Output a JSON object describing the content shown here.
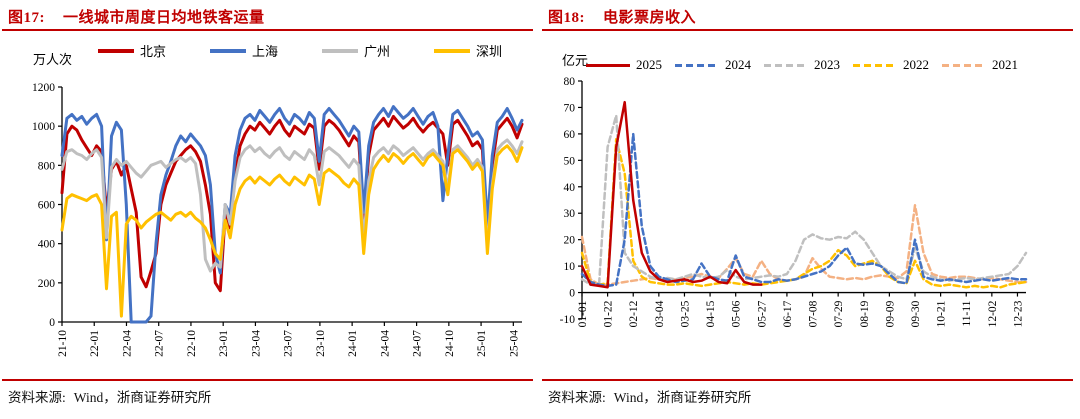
{
  "figures": [
    {
      "number": "图17:",
      "title": "一线城市周度日均地铁客运量",
      "source_label": "资料来源:",
      "source_text": "Wind，浙商证券研究所"
    },
    {
      "number": "图18:",
      "title": "电影票房收入",
      "source_label": "资料来源:",
      "source_text": "Wind，浙商证券研究所"
    }
  ],
  "colors": {
    "accent": "#C00000",
    "axis": "#000000"
  },
  "chart_data": [
    {
      "type": "line",
      "title": "一线城市周度日均地铁客运量",
      "ylabel": "万人次",
      "ylim": [
        0,
        1200
      ],
      "yticks": [
        0,
        200,
        400,
        600,
        800,
        1000,
        1200
      ],
      "grid": false,
      "legend_position": "top",
      "x_description": "weekly average daily metro ridership, one point per 2 weeks from 2021-10 to 2025-05",
      "x_tick_labels": [
        "21-10",
        "22-01",
        "22-04",
        "22-07",
        "22-10",
        "23-01",
        "23-04",
        "23-07",
        "23-10",
        "24-01",
        "24-04",
        "24-07",
        "24-10",
        "25-01",
        "25-04"
      ],
      "x_tick_interval_months": 3,
      "series": [
        {
          "name": "北京",
          "color": "#C00000",
          "dashed": false,
          "values": [
            660,
            960,
            1000,
            980,
            930,
            890,
            850,
            900,
            870,
            560,
            780,
            820,
            750,
            800,
            680,
            560,
            230,
            180,
            260,
            350,
            600,
            700,
            760,
            820,
            850,
            880,
            900,
            870,
            820,
            700,
            550,
            200,
            160,
            550,
            480,
            750,
            900,
            960,
            1000,
            980,
            1020,
            990,
            960,
            1000,
            1030,
            980,
            950,
            1000,
            980,
            960,
            1010,
            990,
            780,
            1000,
            1030,
            1010,
            980,
            940,
            900,
            950,
            920,
            520,
            850,
            980,
            1010,
            1040,
            1000,
            1050,
            1020,
            990,
            1010,
            1040,
            1000,
            970,
            1000,
            1020,
            990,
            960,
            800,
            1010,
            1030,
            990,
            950,
            900,
            920,
            880,
            450,
            800,
            980,
            1010,
            1040,
            1000,
            940,
            1010
          ]
        },
        {
          "name": "上海",
          "color": "#4472C4",
          "dashed": false,
          "values": [
            850,
            1040,
            1060,
            1030,
            1050,
            1010,
            1040,
            1060,
            1000,
            420,
            950,
            1020,
            980,
            600,
            0,
            0,
            0,
            0,
            30,
            400,
            650,
            750,
            820,
            900,
            950,
            920,
            960,
            930,
            900,
            850,
            700,
            350,
            250,
            600,
            550,
            850,
            980,
            1040,
            1060,
            1030,
            1080,
            1050,
            1020,
            1060,
            1090,
            1040,
            1010,
            1060,
            1040,
            1010,
            1070,
            1040,
            820,
            1060,
            1090,
            1060,
            1030,
            990,
            950,
            1000,
            970,
            560,
            900,
            1020,
            1060,
            1090,
            1050,
            1100,
            1070,
            1040,
            1060,
            1090,
            1050,
            1010,
            1050,
            1070,
            1000,
            620,
            850,
            1060,
            1080,
            1040,
            1000,
            950,
            970,
            930,
            500,
            850,
            1020,
            1050,
            1090,
            1040,
            980,
            1030
          ]
        },
        {
          "name": "广州",
          "color": "#BFBFBF",
          "dashed": false,
          "values": [
            780,
            870,
            880,
            860,
            850,
            830,
            860,
            880,
            840,
            430,
            790,
            830,
            800,
            820,
            790,
            760,
            740,
            770,
            800,
            810,
            820,
            790,
            810,
            830,
            840,
            820,
            840,
            810,
            650,
            320,
            260,
            300,
            280,
            600,
            500,
            720,
            840,
            880,
            900,
            870,
            890,
            860,
            840,
            870,
            890,
            850,
            830,
            870,
            850,
            830,
            880,
            850,
            700,
            870,
            890,
            870,
            850,
            820,
            790,
            830,
            800,
            420,
            720,
            840,
            870,
            890,
            860,
            900,
            880,
            850,
            870,
            890,
            860,
            830,
            860,
            880,
            850,
            820,
            680,
            880,
            900,
            870,
            840,
            800,
            830,
            790,
            380,
            700,
            880,
            910,
            930,
            900,
            860,
            920
          ]
        },
        {
          "name": "深圳",
          "color": "#FFC000",
          "dashed": false,
          "values": [
            470,
            630,
            650,
            640,
            630,
            620,
            640,
            650,
            600,
            170,
            540,
            560,
            30,
            500,
            540,
            520,
            480,
            510,
            530,
            550,
            560,
            540,
            520,
            550,
            560,
            540,
            560,
            530,
            510,
            480,
            420,
            350,
            320,
            520,
            430,
            600,
            680,
            720,
            740,
            710,
            740,
            720,
            700,
            730,
            750,
            720,
            700,
            740,
            720,
            700,
            750,
            730,
            600,
            760,
            780,
            760,
            740,
            710,
            690,
            730,
            700,
            350,
            650,
            780,
            820,
            850,
            820,
            860,
            840,
            810,
            840,
            860,
            830,
            800,
            840,
            860,
            830,
            800,
            650,
            860,
            880,
            850,
            820,
            780,
            810,
            770,
            350,
            680,
            850,
            880,
            900,
            870,
            820,
            890
          ]
        }
      ]
    },
    {
      "type": "line",
      "title": "电影票房收入",
      "ylabel": "亿元",
      "ylim": [
        -10,
        80
      ],
      "yticks": [
        -10,
        0,
        10,
        20,
        30,
        40,
        50,
        60,
        70,
        80
      ],
      "grid": false,
      "legend_position": "top",
      "x_description": "daily box office revenue by year, one point per 7 days (day-of-year 1..365)",
      "x_tick_labels": [
        "01-01",
        "01-22",
        "02-12",
        "03-04",
        "03-25",
        "04-15",
        "05-06",
        "05-27",
        "06-17",
        "07-08",
        "07-29",
        "08-19",
        "09-09",
        "09-30",
        "10-21",
        "11-11",
        "12-02",
        "12-23"
      ],
      "x_tick_interval_days": 21,
      "series": [
        {
          "name": "2025",
          "color": "#C00000",
          "dashed": false,
          "values": [
            10,
            3,
            2.5,
            2,
            55,
            72,
            35,
            15,
            8,
            5,
            4,
            4.5,
            5,
            4,
            4.5,
            6,
            4,
            3.5,
            8.5,
            4,
            3,
            3,
            null,
            null,
            null,
            null,
            null,
            null,
            null,
            null,
            null,
            null,
            null,
            null,
            null,
            null,
            null,
            null,
            null,
            null,
            null,
            null,
            null,
            null,
            null,
            null,
            null,
            null,
            null,
            null,
            null,
            null,
            null
          ]
        },
        {
          "name": "2024",
          "color": "#4472C4",
          "dashed": true,
          "values": [
            7,
            4,
            3,
            2.5,
            3,
            20,
            60,
            25,
            10,
            6,
            5,
            4,
            4.5,
            5,
            11,
            6,
            5,
            4.5,
            14,
            6,
            5,
            4,
            4,
            5,
            4.5,
            5,
            6,
            7,
            8,
            10,
            14,
            17,
            11,
            10.5,
            11,
            10,
            7,
            4,
            3.5,
            20,
            6,
            5,
            4.5,
            5,
            4.5,
            4,
            4.5,
            5,
            4.5,
            5,
            5.5,
            5,
            5
          ]
        },
        {
          "name": "2023",
          "color": "#BFBFBF",
          "dashed": true,
          "values": [
            5,
            3,
            3,
            55,
            67,
            15,
            10,
            8,
            6,
            5,
            5.5,
            5,
            6,
            7,
            6,
            5.5,
            6,
            8.5,
            6,
            5,
            5.5,
            6,
            6.5,
            6,
            7,
            12,
            20,
            22,
            20.5,
            20,
            21,
            20.5,
            23,
            20,
            15,
            10,
            8,
            6,
            5,
            17,
            8,
            6,
            5,
            4.5,
            5,
            5.5,
            5,
            5.5,
            6,
            6.5,
            7,
            10,
            15
          ]
        },
        {
          "name": "2022",
          "color": "#FFC000",
          "dashed": true,
          "values": [
            15,
            4,
            3,
            3.5,
            58,
            45,
            12,
            6,
            4,
            3.5,
            3,
            3,
            3.5,
            3,
            2.5,
            3,
            3.5,
            4,
            3.5,
            3,
            3.5,
            3,
            3.5,
            4,
            4.5,
            5,
            7,
            9,
            10,
            12,
            16,
            14,
            10,
            11,
            12,
            10,
            6,
            4,
            3.5,
            12,
            5,
            3,
            2.5,
            3,
            2.5,
            2,
            2.5,
            2,
            2.5,
            2,
            3,
            3.5,
            4
          ]
        },
        {
          "name": "2021",
          "color": "#F4B183",
          "dashed": true,
          "values": [
            21,
            5,
            3,
            3,
            3.5,
            4,
            4.5,
            5,
            5.5,
            5,
            4.5,
            5,
            5.5,
            6,
            7,
            6,
            5.5,
            9,
            13,
            7,
            6,
            12,
            7,
            5,
            4.5,
            5,
            6,
            13,
            9,
            6,
            5.5,
            5,
            5.5,
            5,
            6,
            6.5,
            6,
            5.5,
            8,
            33,
            15,
            7,
            6,
            5.5,
            6,
            6,
            5.5,
            5,
            5.5,
            5,
            4.5,
            4,
            4
          ]
        }
      ]
    }
  ]
}
